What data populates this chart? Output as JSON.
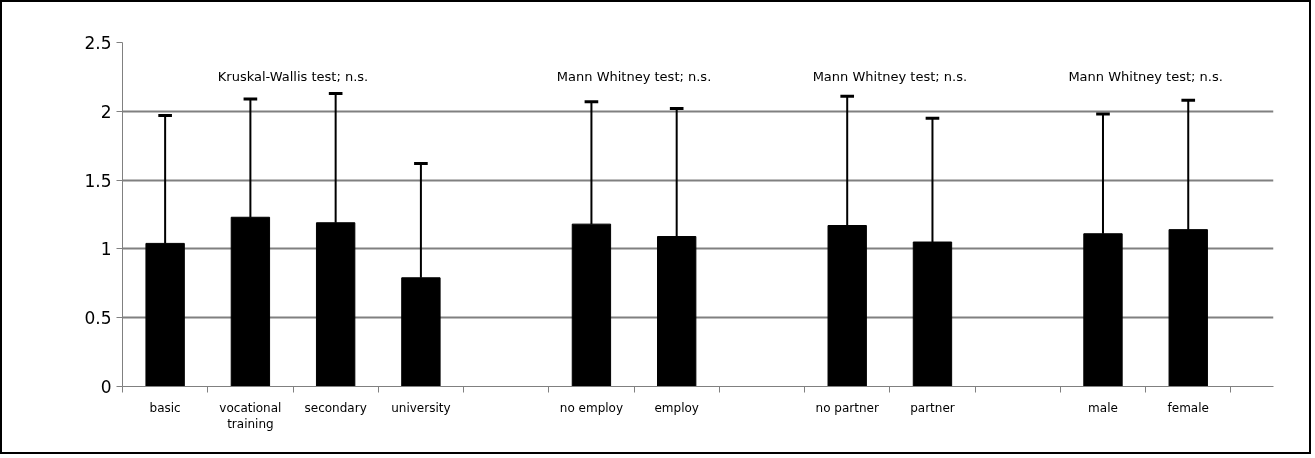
{
  "chart_data": {
    "type": "bar",
    "categories": [
      "basic",
      "vocational training",
      "secondary",
      "university",
      null,
      "no employ",
      "employ",
      null,
      "no partner",
      "partner",
      null,
      "male",
      "female"
    ],
    "values": [
      1.04,
      1.23,
      1.19,
      0.79,
      null,
      1.18,
      1.09,
      null,
      1.17,
      1.05,
      null,
      1.11,
      1.14
    ],
    "errors": [
      [
        1.04,
        1.97
      ],
      [
        1.23,
        2.09
      ],
      [
        1.19,
        2.13
      ],
      [
        0.79,
        1.62
      ],
      null,
      [
        1.18,
        2.07
      ],
      [
        1.09,
        2.02
      ],
      null,
      [
        1.17,
        2.11
      ],
      [
        1.05,
        1.95
      ],
      null,
      [
        1.11,
        1.98
      ],
      [
        1.14,
        2.08
      ]
    ],
    "color": "#000000",
    "ylim": [
      0,
      2.5
    ],
    "yticks": [
      0,
      0.5,
      1,
      1.5,
      2,
      2.5
    ],
    "grid": "y",
    "annotations": [
      "Kruskal-Wallis test; n.s.",
      "Mann Whitney test; n.s.",
      "Mann Whitney test; n.s.",
      "Mann Whitney test; n.s."
    ]
  }
}
